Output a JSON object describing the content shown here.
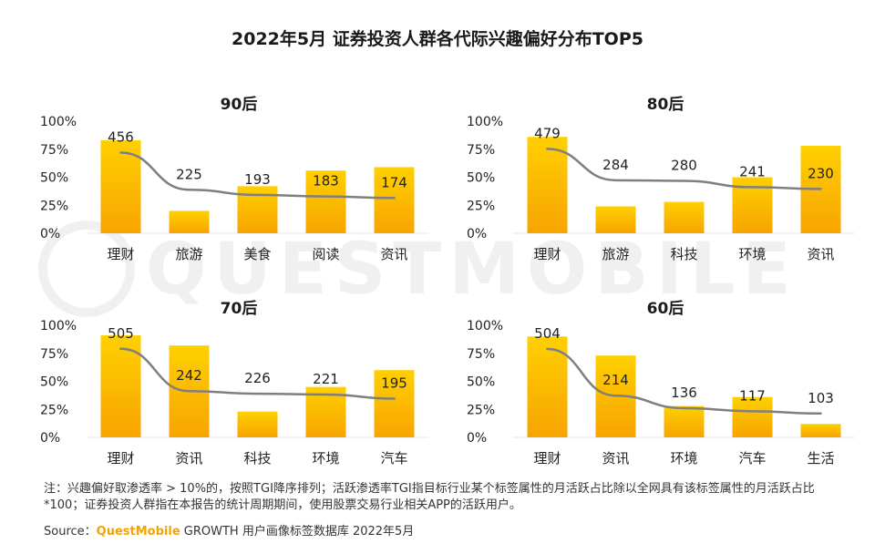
{
  "title": "2022年5月 证券投资人群各代际兴趣偏好分布TOP5",
  "watermark": "QUESTMOBILE",
  "colors": {
    "bar_top": "#ffd000",
    "bar_bottom": "#f7a400",
    "line": "#7f7f7f",
    "text": "#222222"
  },
  "chart_data": [
    {
      "type": "bar",
      "title": "90后",
      "categories": [
        "理财",
        "旅游",
        "美食",
        "阅读",
        "资讯"
      ],
      "values": [
        83,
        20,
        42,
        56,
        59
      ],
      "tgi": [
        456,
        225,
        193,
        183,
        174
      ],
      "yticks": [
        "100%",
        "75%",
        "50%",
        "25%",
        "0%"
      ],
      "ylim": [
        0,
        100
      ],
      "tgi_range": [
        0,
        600
      ],
      "secondary_series": "TGI"
    },
    {
      "type": "bar",
      "title": "80后",
      "categories": [
        "理财",
        "旅游",
        "科技",
        "环境",
        "资讯"
      ],
      "values": [
        86,
        24,
        28,
        50,
        78
      ],
      "tgi": [
        479,
        284,
        280,
        241,
        230
      ],
      "yticks": [
        "100%",
        "75%",
        "50%",
        "25%",
        "0%"
      ],
      "ylim": [
        0,
        100
      ],
      "tgi_range": [
        0,
        600
      ],
      "secondary_series": "TGI"
    },
    {
      "type": "bar",
      "title": "70后",
      "categories": [
        "理财",
        "资讯",
        "科技",
        "环境",
        "汽车"
      ],
      "values": [
        91,
        82,
        23,
        45,
        60
      ],
      "tgi": [
        505,
        242,
        226,
        221,
        195
      ],
      "yticks": [
        "100%",
        "75%",
        "50%",
        "25%",
        "0%"
      ],
      "ylim": [
        0,
        100
      ],
      "tgi_range": [
        0,
        600
      ],
      "secondary_series": "TGI"
    },
    {
      "type": "bar",
      "title": "60后",
      "categories": [
        "理财",
        "资讯",
        "环境",
        "汽车",
        "生活"
      ],
      "values": [
        90,
        73,
        28,
        36,
        12
      ],
      "tgi": [
        504,
        214,
        136,
        117,
        103
      ],
      "yticks": [
        "100%",
        "75%",
        "50%",
        "25%",
        "0%"
      ],
      "ylim": [
        0,
        100
      ],
      "tgi_range": [
        0,
        600
      ],
      "secondary_series": "TGI"
    }
  ],
  "footnote": "注：兴趣偏好取渗透率 > 10%的，按照TGI降序排列；活跃渗透率TGI指目标行业某个标签属性的月活跃占比除以全网具有该标签属性的月活跃占比*100；证券投资人群指在本报告的统计周期期间，使用股票交易行业相关APP的活跃用户。",
  "source": {
    "prefix": "Source：",
    "brand": "QuestMobile",
    "suffix": " GROWTH 用户画像标签数据库 2022年5月"
  }
}
